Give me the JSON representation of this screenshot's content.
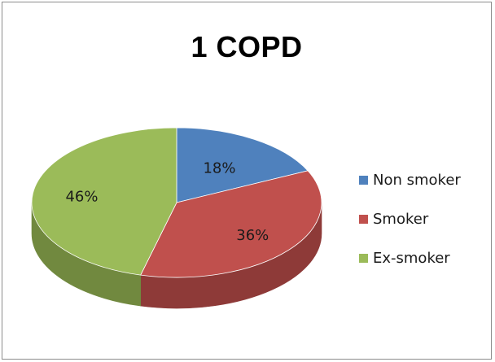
{
  "chart_data": {
    "type": "pie",
    "title": "1 COPD",
    "categories": [
      "Non smoker",
      "Smoker",
      "Ex-smoker"
    ],
    "values": [
      18,
      36,
      46
    ],
    "labels": [
      "18%",
      "36%",
      "46%"
    ],
    "colors": [
      "#4f81bd",
      "#c0504d",
      "#9bbb59"
    ],
    "side_colors": [
      "#3b6091",
      "#8e3a38",
      "#71893f"
    ],
    "legend_position": "right",
    "style": "3d-pie"
  }
}
